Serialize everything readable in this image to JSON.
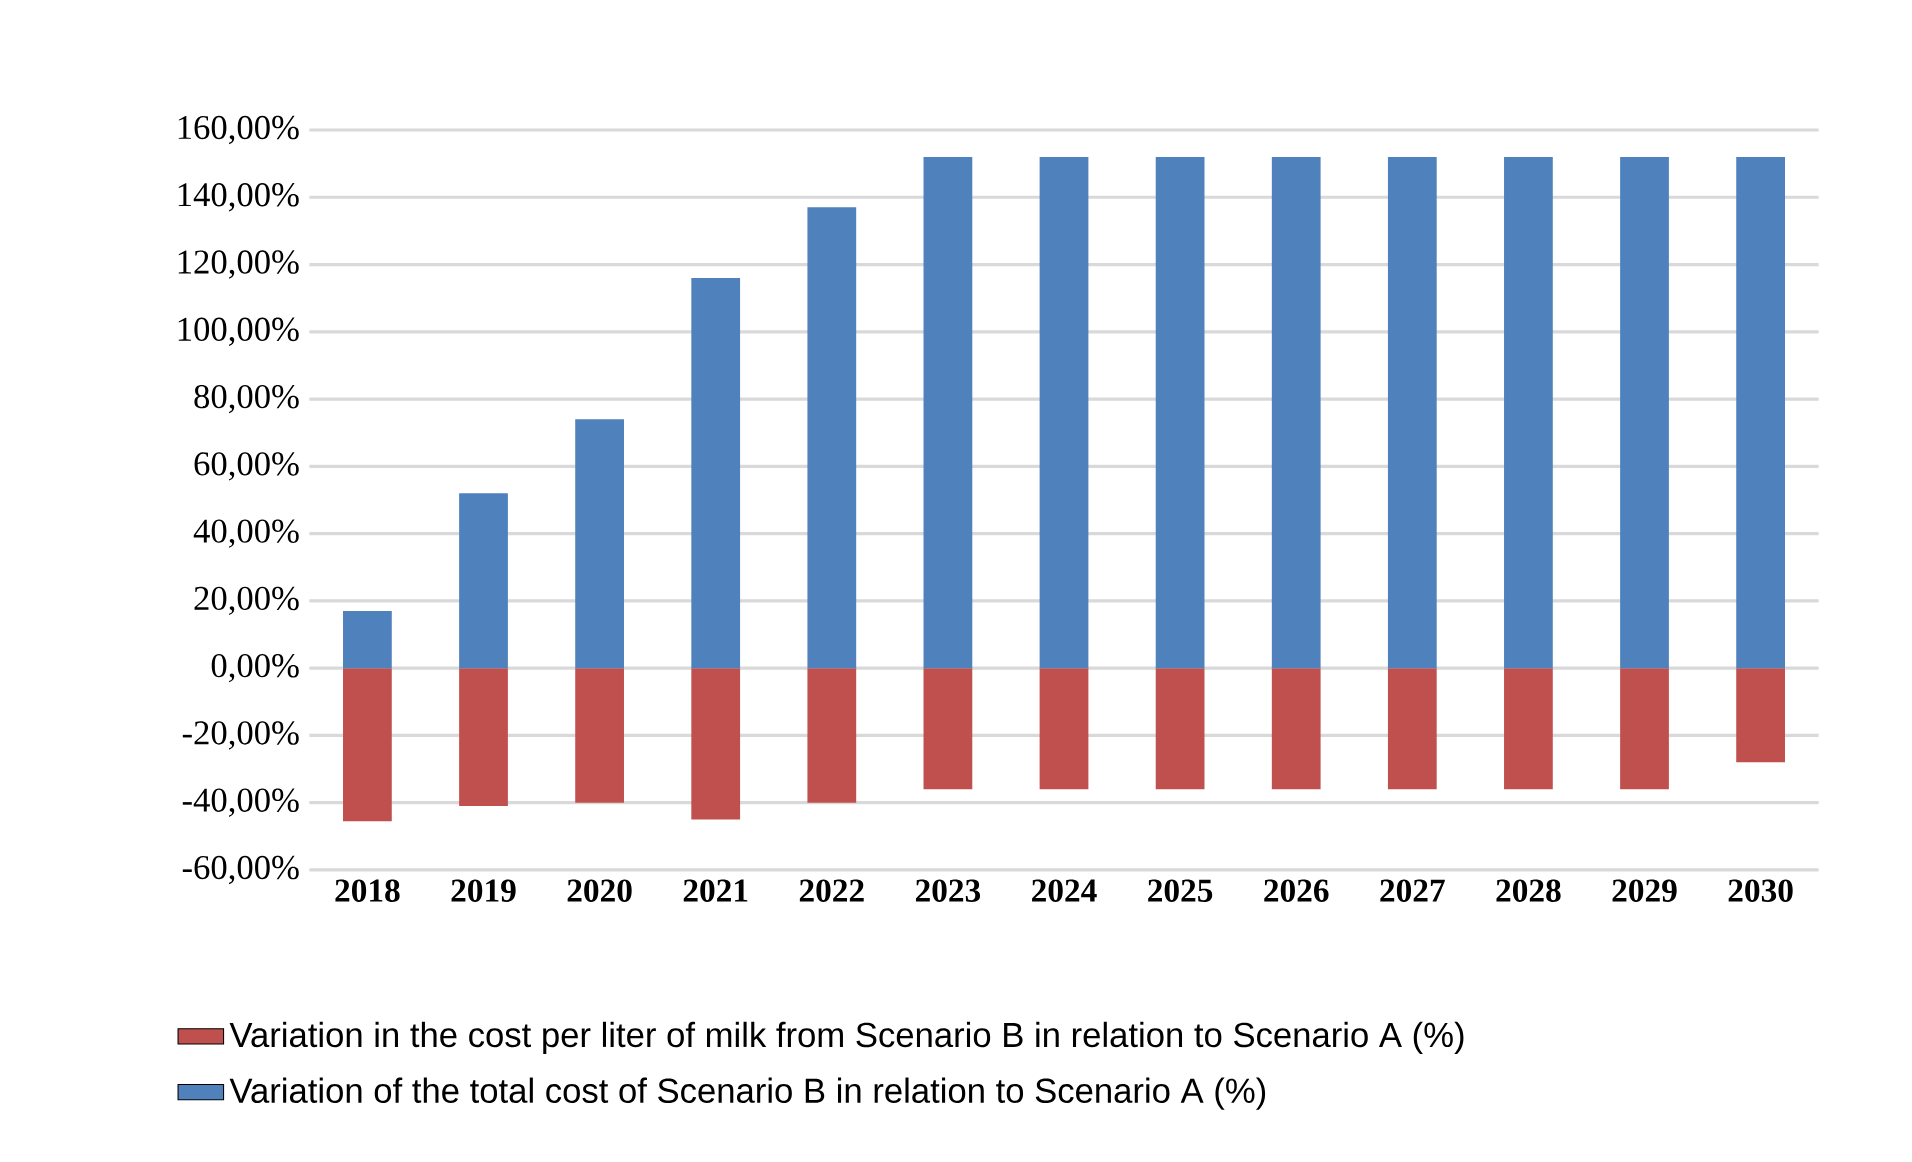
{
  "chart_data": {
    "type": "bar",
    "stacked": true,
    "categories": [
      "2018",
      "2019",
      "2020",
      "2021",
      "2022",
      "2023",
      "2024",
      "2025",
      "2026",
      "2027",
      "2028",
      "2029",
      "2030"
    ],
    "series": [
      {
        "name": "Variation in the cost per liter of milk from Scenario B in relation to Scenario A (%)",
        "color": "#c0504d",
        "values": [
          -45.5,
          -41,
          -40,
          -45,
          -40,
          -36,
          -36,
          -36,
          -36,
          -36,
          -36,
          -36,
          -28
        ]
      },
      {
        "name": "Variation of the total cost of Scenario B in relation to Scenario A (%)",
        "color": "#4f81bd",
        "values": [
          17,
          52,
          74,
          116,
          137,
          152,
          152,
          152,
          152,
          152,
          152,
          152,
          152
        ]
      }
    ],
    "ylim": [
      -60,
      160
    ],
    "yticks": [
      {
        "value": -60,
        "label": "-60,00%"
      },
      {
        "value": -40,
        "label": "-40,00%"
      },
      {
        "value": -20,
        "label": "-20,00%"
      },
      {
        "value": 0,
        "label": "0,00%"
      },
      {
        "value": 20,
        "label": "20,00%"
      },
      {
        "value": 40,
        "label": "40,00%"
      },
      {
        "value": 60,
        "label": "60,00%"
      },
      {
        "value": 80,
        "label": "80,00%"
      },
      {
        "value": 100,
        "label": "100,00%"
      },
      {
        "value": 120,
        "label": "120,00%"
      },
      {
        "value": 140,
        "label": "140,00%"
      },
      {
        "value": 160,
        "label": "160,00%"
      }
    ],
    "grid": "y",
    "legend": "bottom"
  }
}
